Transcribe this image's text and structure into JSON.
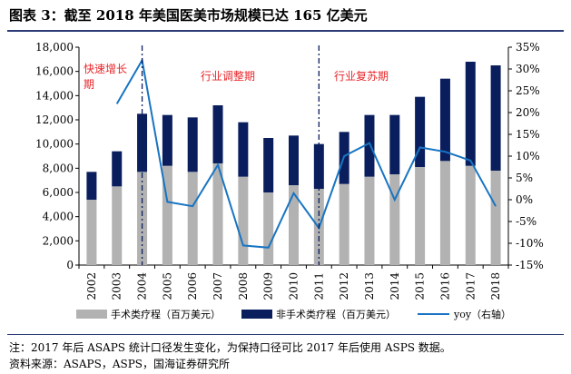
{
  "title": "图表 3：截至 2018 年美国医美市场规模已达 165 亿美元",
  "notes": {
    "note1": "注：2017 年后 ASAPS 统计口径发生变化，为保持口径可比 2017 年后使用 ASPS 数据。",
    "source": "资料来源：ASAPS，ASPS，国海证券研究所"
  },
  "colors": {
    "surgical": "#b2b2b2",
    "non_surgical": "#0a1e5e",
    "yoy": "#1874c2",
    "annotation": "#e8262a",
    "divider": "#0a1e5e",
    "title_rule": "#2c3a75"
  },
  "chart_data": {
    "type": "bar",
    "stacked": true,
    "categories": [
      "2002",
      "2003",
      "2004",
      "2005",
      "2006",
      "2007",
      "2008",
      "2009",
      "2010",
      "2011",
      "2012",
      "2013",
      "2014",
      "2015",
      "2016",
      "2017",
      "2018"
    ],
    "series": [
      {
        "name": "手术类疗程（百万美元）",
        "type": "bar",
        "axis": "left",
        "values": [
          5400,
          6500,
          7700,
          8200,
          7700,
          8400,
          7300,
          6000,
          6600,
          6300,
          6700,
          7300,
          7500,
          8100,
          8600,
          8200,
          7800
        ]
      },
      {
        "name": "非手术类疗程（百万美元）",
        "type": "bar",
        "axis": "left",
        "values": [
          2300,
          2900,
          4800,
          4200,
          4500,
          4800,
          4500,
          4500,
          4100,
          3700,
          4300,
          5100,
          4900,
          5800,
          6800,
          8600,
          8700
        ]
      },
      {
        "name": "yoy（右轴）",
        "type": "line",
        "axis": "right",
        "values": [
          null,
          22,
          32,
          -0.5,
          -1.5,
          8,
          -10.5,
          -11,
          1.5,
          -6.5,
          10,
          13,
          0,
          12,
          11,
          9,
          -1.5
        ]
      }
    ],
    "left_axis": {
      "min": 0,
      "max": 18000,
      "step": 2000,
      "ticks": [
        "0",
        "2,000",
        "4,000",
        "6,000",
        "8,000",
        "10,000",
        "12,000",
        "14,000",
        "16,000",
        "18,000"
      ]
    },
    "right_axis": {
      "min": -15,
      "max": 35,
      "step": 5,
      "ticks": [
        "-15%",
        "-10%",
        "-5%",
        "0%",
        "5%",
        "10%",
        "15%",
        "20%",
        "25%",
        "30%",
        "35%"
      ]
    },
    "annotations": [
      {
        "text": "快速增长期",
        "lines": [
          "快速增长",
          "期"
        ]
      },
      {
        "text": "行业调整期"
      },
      {
        "text": "行业复苏期"
      }
    ],
    "dividers_after_category": [
      "2004",
      "2011"
    ],
    "legend_position": "bottom",
    "grid": false
  }
}
